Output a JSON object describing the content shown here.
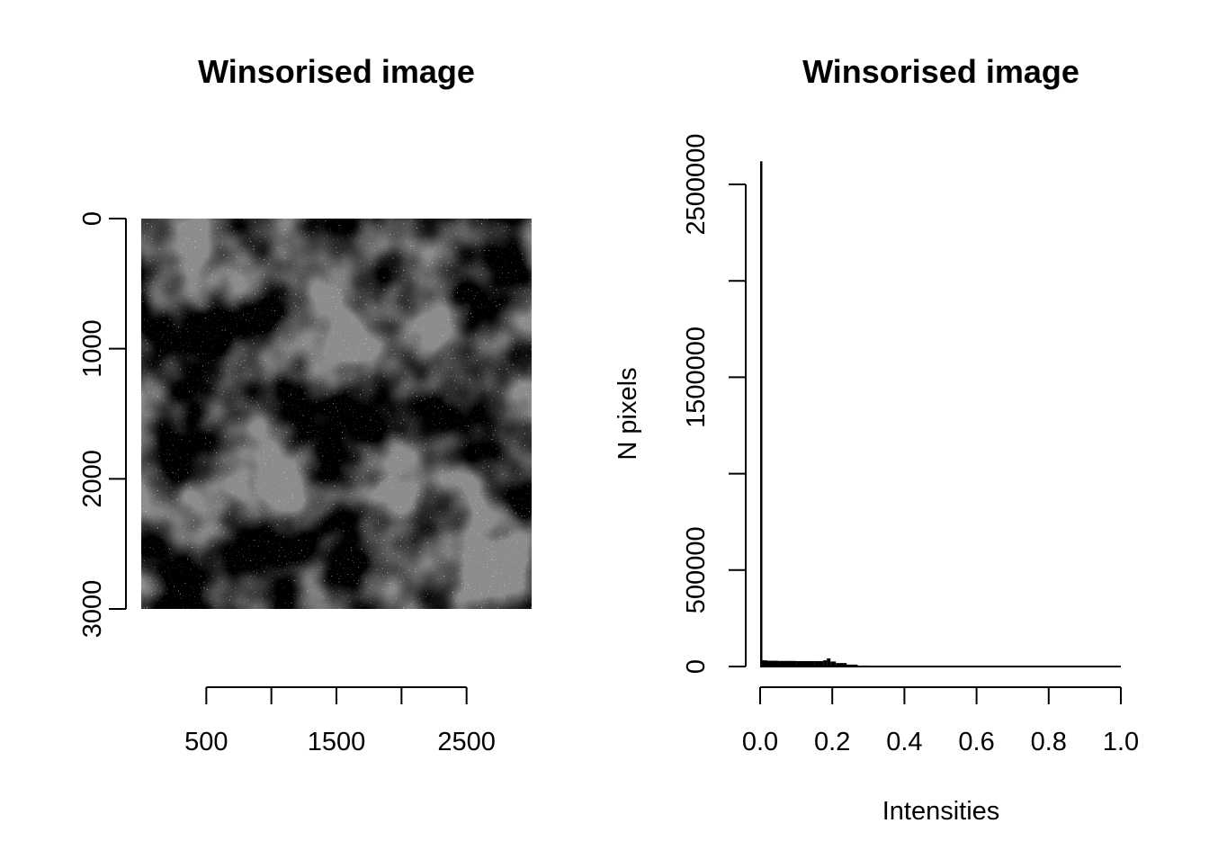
{
  "chart_data": [
    {
      "type": "image",
      "title": "Winsorised image",
      "colormap": "grayscale",
      "xlim": [
        0,
        3000
      ],
      "ylim": [
        3000,
        0
      ],
      "x_ticks": [
        500,
        1000,
        1500,
        2000,
        2500
      ],
      "x_tick_labels": [
        "500",
        "",
        "1500",
        "",
        "2500"
      ],
      "y_ticks": [
        0,
        1000,
        2000,
        3000
      ],
      "y_tick_labels": [
        "0",
        "1000",
        "2000",
        "3000"
      ]
    },
    {
      "type": "bar",
      "title": "Winsorised image",
      "xlabel": "Intensities",
      "ylabel": "N pixels",
      "xlim": [
        0,
        1
      ],
      "ylim": [
        0,
        2500000
      ],
      "x_ticks": [
        0,
        0.2,
        0.4,
        0.6,
        0.8,
        1
      ],
      "x_tick_labels": [
        "0.0",
        "0.2",
        "0.4",
        "0.6",
        "0.8",
        "1.0"
      ],
      "y_ticks": [
        0,
        500000,
        1000000,
        1500000,
        2000000,
        2500000
      ],
      "y_tick_labels": [
        "0",
        "500000",
        "",
        "1500000",
        "",
        "2500000"
      ],
      "bins": [
        {
          "x": 0.0,
          "value": 2620000
        },
        {
          "x": 0.005,
          "value": 32000
        },
        {
          "x": 0.02,
          "value": 30000
        },
        {
          "x": 0.05,
          "value": 29000
        },
        {
          "x": 0.1,
          "value": 28000
        },
        {
          "x": 0.15,
          "value": 28000
        },
        {
          "x": 0.175,
          "value": 32000
        },
        {
          "x": 0.185,
          "value": 42000
        },
        {
          "x": 0.195,
          "value": 26000
        },
        {
          "x": 0.21,
          "value": 18000
        },
        {
          "x": 0.24,
          "value": 10000
        },
        {
          "x": 0.27,
          "value": 5000
        },
        {
          "x": 0.3,
          "value": 2000
        },
        {
          "x": 0.4,
          "value": 600
        },
        {
          "x": 0.6,
          "value": 200
        },
        {
          "x": 0.8,
          "value": 100
        },
        {
          "x": 1.0,
          "value": 0
        }
      ]
    }
  ]
}
